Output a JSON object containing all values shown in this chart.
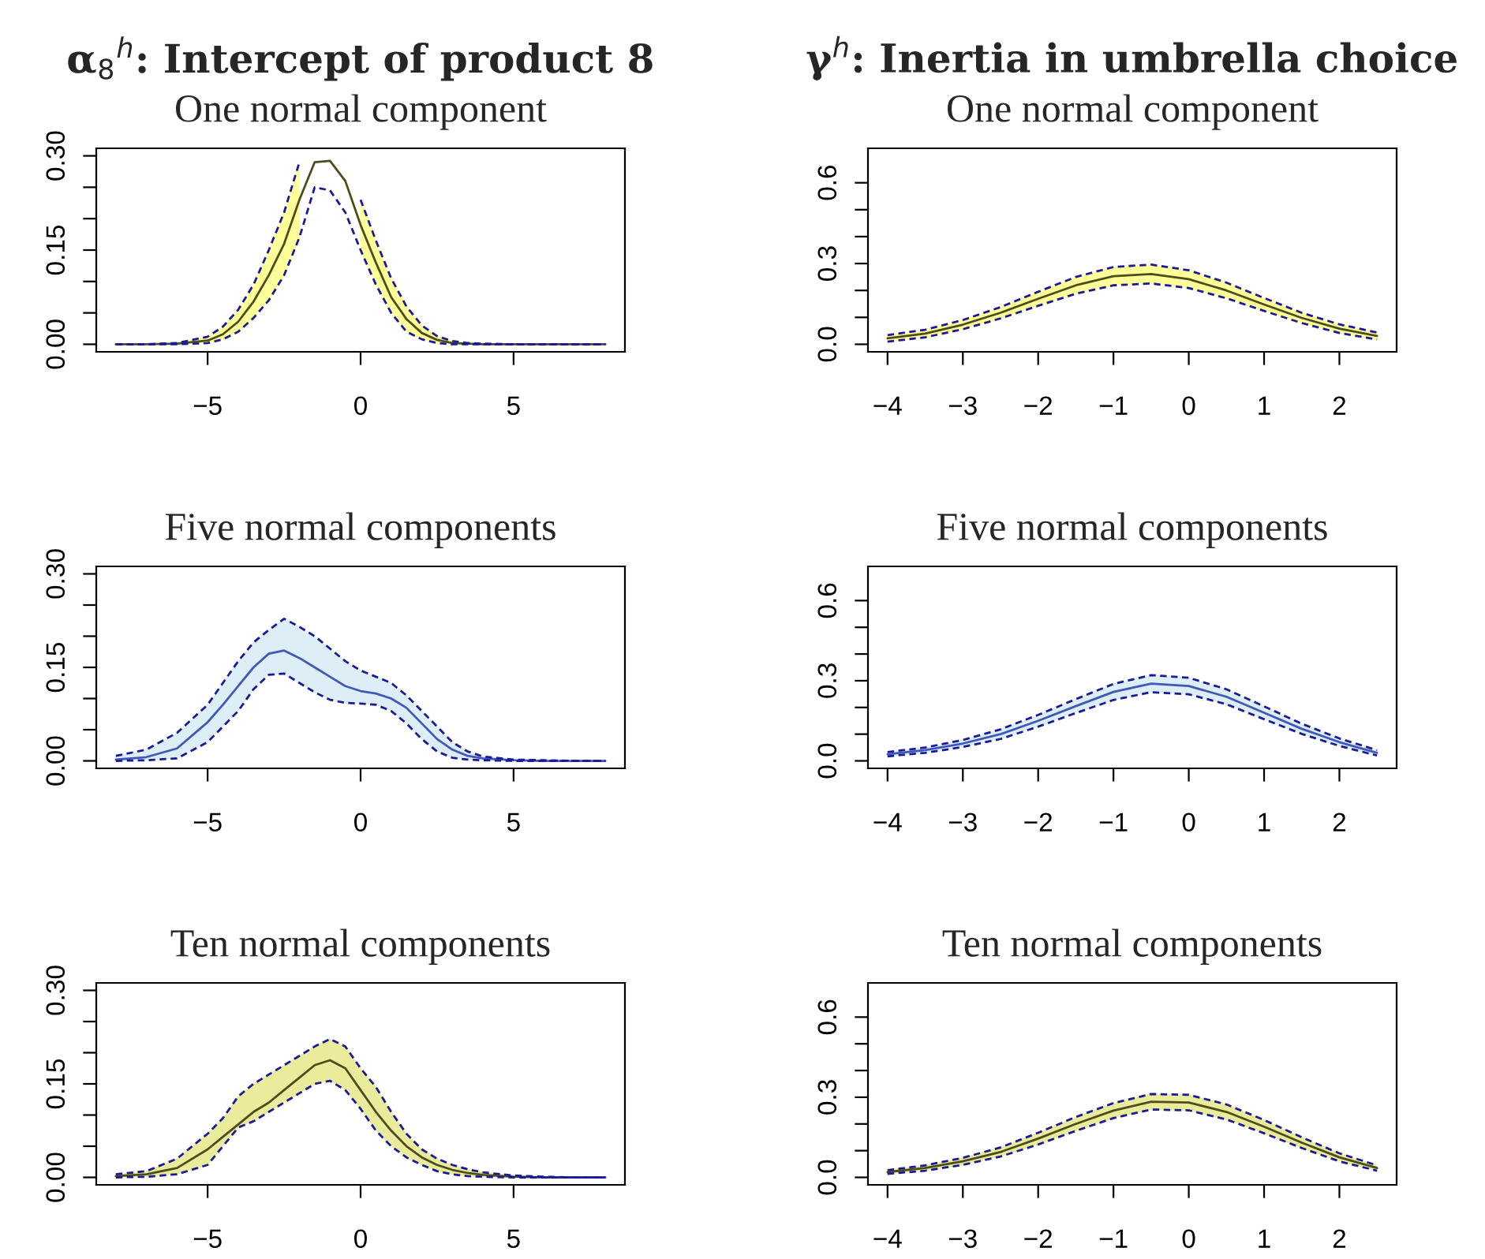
{
  "chart_data": [
    {
      "type": "line",
      "title": "α$_{8}$$^{h}$: Intercept of product 8",
      "subtitle": "One normal component",
      "x": [
        -8,
        -7,
        -6,
        -5,
        -4.5,
        -4,
        -3.5,
        -3,
        -2.5,
        -2,
        -1.5,
        -1,
        -0.5,
        0,
        0.5,
        1,
        1.5,
        2,
        2.5,
        3,
        3.5,
        4,
        5,
        6,
        7,
        8
      ],
      "series": [
        {
          "color": "#4d4d1a",
          "colors": [
            "#ffff99",
            "#ffff99",
            "#ffff99",
            "#ffff99",
            "#ffff99",
            "#ffff99",
            "#ffff99",
            "#ffff99",
            "#ffff99",
            "#ffff99",
            "#ffff99",
            "#ffff99",
            "#ffff99",
            "#ffff99",
            "#ffff99",
            "#ffff99",
            "#ffff99",
            "#ffff99",
            "#ffff99",
            "#ffff99",
            "#ffff99",
            "#ffff99",
            "#ffff99",
            "#ffff99",
            "#ffff99",
            "#ffff99"
          ],
          "values": [
            0,
            0,
            0.001,
            0.006,
            0.016,
            0.036,
            0.068,
            0.11,
            0.16,
            0.23,
            0.29,
            0.292,
            0.26,
            0.19,
            0.13,
            0.075,
            0.04,
            0.018,
            0.007,
            0.002,
            0.001,
            0,
            0,
            0,
            0,
            0
          ],
          "lower": [
            null,
            null,
            0,
            0.002,
            0.008,
            0.02,
            0.042,
            0.07,
            0.11,
            0.17,
            null,
            null,
            null,
            0.15,
            0.095,
            0.05,
            0.02,
            0.008,
            0.002,
            0,
            0,
            0,
            null,
            null,
            null,
            null
          ],
          "upper": [
            null,
            null,
            0.002,
            0.012,
            0.028,
            0.055,
            0.095,
            0.15,
            0.21,
            0.29,
            null,
            null,
            null,
            0.23,
            0.165,
            0.105,
            0.06,
            0.03,
            0.013,
            0.005,
            0.002,
            0.001,
            null,
            null,
            null,
            null
          ]
        },
        {
          "type": "line",
          "line_style": "dashed",
          "color": "#1a1a99",
          "values": [
            0,
            0,
            0,
            0.002,
            0.008,
            0.02,
            0.042,
            0.07,
            0.11,
            0.17,
            0.25,
            0.245,
            0.21,
            0.15,
            0.095,
            0.05,
            0.02,
            0.008,
            0.002,
            0,
            0,
            0,
            0,
            0,
            0,
            0
          ]
        },
        {
          "type": "line",
          "line_style": "dashed",
          "color": "#1a1a99",
          "values": [
            0,
            0,
            0.002,
            0.012,
            0.028,
            0.055,
            0.095,
            0.15,
            0.21,
            0.29,
            null,
            null,
            null,
            0.23,
            0.165,
            0.105,
            0.06,
            0.03,
            0.013,
            0.005,
            0.002,
            0.001,
            0,
            0,
            0,
            0
          ]
        }
      ],
      "xlim": [
        -8.64,
        8.64
      ],
      "xticks": [
        {
          "value": -5,
          "label": "−5"
        },
        0,
        5
      ],
      "ylim": [
        -0.012,
        0.312
      ],
      "yticks": [
        {
          "value": 0,
          "label": "0.00"
        },
        {
          "value": 0.05,
          "label": null
        },
        {
          "value": 0.1,
          "label": null
        },
        0.15,
        {
          "value": 0.2,
          "label": null
        },
        {
          "value": 0.25,
          "label": null
        },
        {
          "value": 0.3,
          "label": "0.30"
        }
      ],
      "grid": false,
      "legend": false,
      "line_style": "solid"
    },
    {
      "type": "line",
      "title": "γ$^{h}$: Inertia in umbrella choice",
      "subtitle": "One normal component",
      "x": [
        -4,
        -3.5,
        -3,
        -2.5,
        -2,
        -1.5,
        -1,
        -0.5,
        0,
        0.5,
        1,
        1.5,
        2,
        2.5
      ],
      "series": [
        {
          "color": "#4d4d1a",
          "colors": [
            "#ffff99",
            "#ffff99",
            "#ffff99",
            "#ffff99",
            "#ffff99",
            "#ffff99",
            "#ffff99",
            "#ffff99",
            "#ffff99",
            "#ffff99",
            "#ffff99",
            "#ffff99",
            "#ffff99",
            "#ffff99"
          ],
          "values": [
            0.022,
            0.04,
            0.073,
            0.117,
            0.169,
            0.219,
            0.253,
            0.261,
            0.242,
            0.2,
            0.148,
            0.098,
            0.058,
            0.031
          ],
          "lower": [
            0.01,
            0.026,
            0.056,
            0.096,
            0.143,
            0.188,
            0.219,
            0.226,
            0.209,
            0.171,
            0.124,
            0.079,
            0.042,
            0.018
          ],
          "upper": [
            0.034,
            0.054,
            0.09,
            0.138,
            0.195,
            0.25,
            0.287,
            0.296,
            0.275,
            0.229,
            0.172,
            0.117,
            0.074,
            0.044
          ]
        },
        {
          "type": "line",
          "line_style": "dashed",
          "color": "#1a1a99",
          "values": [
            0.01,
            0.026,
            0.056,
            0.096,
            0.143,
            0.188,
            0.219,
            0.226,
            0.209,
            0.171,
            0.124,
            0.079,
            0.042,
            0.018
          ]
        },
        {
          "type": "line",
          "line_style": "dashed",
          "color": "#1a1a99",
          "values": [
            0.034,
            0.054,
            0.09,
            0.138,
            0.195,
            0.25,
            0.287,
            0.296,
            0.275,
            0.229,
            0.172,
            0.117,
            0.074,
            0.044
          ]
        }
      ],
      "xlim": [
        -4.26,
        2.76
      ],
      "xticks": [
        {
          "value": -4,
          "label": "−4"
        },
        {
          "value": -3,
          "label": "−3"
        },
        {
          "value": -2,
          "label": "−2"
        },
        {
          "value": -1,
          "label": "−1"
        },
        0,
        1,
        2
      ],
      "ylim": [
        -0.028,
        0.728
      ],
      "yticks": [
        {
          "value": 0,
          "label": "0.0"
        },
        {
          "value": 0.1,
          "label": null
        },
        {
          "value": 0.2,
          "label": null
        },
        0.3,
        {
          "value": 0.4,
          "label": null
        },
        {
          "value": 0.5,
          "label": null
        },
        0.6
      ],
      "grid": false,
      "legend": false,
      "line_style": "solid"
    },
    {
      "type": "line",
      "subtitle": "Five normal components",
      "x": [
        -8,
        -7,
        -6,
        -5,
        -4.5,
        -4,
        -3.5,
        -3,
        -2.5,
        -2,
        -1.5,
        -1,
        -0.5,
        0,
        0.5,
        1,
        1.5,
        2,
        2.5,
        3,
        3.5,
        4,
        5,
        6,
        7,
        8
      ],
      "series": [
        {
          "color": "#4058b8",
          "colors": [
            "#ddeef6",
            "#ddeef6",
            "#ddeef6",
            "#ddeef6",
            "#ddeef6",
            "#ddeef6",
            "#ddeef6",
            "#ddeef6",
            "#ddeef6",
            "#ddeef6",
            "#ddeef6",
            "#ddeef6",
            "#ddeef6",
            "#ddeef6",
            "#ddeef6",
            "#ddeef6",
            "#ddeef6",
            "#ddeef6",
            "#ddeef6",
            "#ddeef6",
            "#ddeef6",
            "#ddeef6",
            "#ddeef6",
            "#ddeef6",
            "#ddeef6",
            "#ddeef6"
          ],
          "values": [
            0.002,
            0.006,
            0.02,
            0.062,
            0.09,
            0.12,
            0.15,
            0.172,
            0.177,
            0.165,
            0.15,
            0.135,
            0.12,
            0.112,
            0.108,
            0.1,
            0.085,
            0.06,
            0.035,
            0.018,
            0.008,
            0.004,
            0.001,
            0,
            0,
            0
          ],
          "lower": [
            0,
            0.001,
            0.004,
            0.03,
            0.055,
            0.08,
            0.115,
            0.138,
            0.14,
            0.125,
            0.11,
            0.098,
            0.093,
            0.092,
            0.09,
            0.08,
            0.06,
            0.035,
            0.015,
            0.005,
            0.002,
            0.001,
            0,
            0,
            null,
            null
          ],
          "upper": [
            0.008,
            0.018,
            0.045,
            0.09,
            0.125,
            0.16,
            0.19,
            0.21,
            0.228,
            0.215,
            0.2,
            0.18,
            0.16,
            0.145,
            0.135,
            0.125,
            0.105,
            0.08,
            0.055,
            0.03,
            0.015,
            0.007,
            0.002,
            0.001,
            null,
            null
          ]
        },
        {
          "type": "line",
          "line_style": "dashed",
          "color": "#1a1a99",
          "values": [
            0,
            0.001,
            0.004,
            0.03,
            0.055,
            0.08,
            0.115,
            0.138,
            0.14,
            0.125,
            0.11,
            0.098,
            0.093,
            0.092,
            0.09,
            0.08,
            0.06,
            0.035,
            0.015,
            0.005,
            0.002,
            0.001,
            0,
            0,
            0,
            0
          ]
        },
        {
          "type": "line",
          "line_style": "dashed",
          "color": "#1a1a99",
          "values": [
            0.008,
            0.018,
            0.045,
            0.09,
            0.125,
            0.16,
            0.19,
            0.21,
            0.228,
            0.215,
            0.2,
            0.18,
            0.16,
            0.145,
            0.135,
            0.125,
            0.105,
            0.08,
            0.055,
            0.03,
            0.015,
            0.007,
            0.002,
            0.001,
            0,
            0
          ]
        }
      ],
      "xlim": [
        -8.64,
        8.64
      ],
      "xticks": [
        {
          "value": -5,
          "label": "−5"
        },
        0,
        5
      ],
      "ylim": [
        -0.012,
        0.312
      ],
      "yticks": [
        {
          "value": 0,
          "label": "0.00"
        },
        {
          "value": 0.05,
          "label": null
        },
        {
          "value": 0.1,
          "label": null
        },
        0.15,
        {
          "value": 0.2,
          "label": null
        },
        {
          "value": 0.25,
          "label": null
        },
        {
          "value": 0.3,
          "label": "0.30"
        }
      ],
      "grid": false,
      "legend": false,
      "line_style": "solid"
    },
    {
      "type": "line",
      "subtitle": "Five normal components",
      "x": [
        -4,
        -3.5,
        -3,
        -2.5,
        -2,
        -1.5,
        -1,
        -0.5,
        0,
        0.5,
        1,
        1.5,
        2,
        2.5
      ],
      "series": [
        {
          "color": "#4058b8",
          "colors": [
            "#ddeef6",
            "#ddeef6",
            "#ddeef6",
            "#ddeef6",
            "#ddeef6",
            "#ddeef6",
            "#ddeef6",
            "#ddeef6",
            "#ddeef6",
            "#ddeef6",
            "#ddeef6",
            "#ddeef6",
            "#ddeef6",
            "#ddeef6"
          ],
          "values": [
            0.025,
            0.04,
            0.065,
            0.1,
            0.15,
            0.205,
            0.258,
            0.289,
            0.28,
            0.24,
            0.18,
            0.12,
            0.07,
            0.03
          ],
          "lower": [
            0.017,
            0.03,
            0.052,
            0.082,
            0.128,
            0.179,
            0.228,
            0.257,
            0.249,
            0.212,
            0.156,
            0.101,
            0.056,
            0.02
          ],
          "upper": [
            0.033,
            0.05,
            0.078,
            0.118,
            0.172,
            0.231,
            0.288,
            0.321,
            0.311,
            0.268,
            0.204,
            0.139,
            0.084,
            0.04
          ]
        },
        {
          "type": "line",
          "line_style": "dashed",
          "color": "#1a1a99",
          "values": [
            0.017,
            0.03,
            0.052,
            0.082,
            0.128,
            0.179,
            0.228,
            0.257,
            0.249,
            0.212,
            0.156,
            0.101,
            0.056,
            0.02
          ]
        },
        {
          "type": "line",
          "line_style": "dashed",
          "color": "#1a1a99",
          "values": [
            0.033,
            0.05,
            0.078,
            0.118,
            0.172,
            0.231,
            0.288,
            0.321,
            0.311,
            0.268,
            0.204,
            0.139,
            0.084,
            0.04
          ]
        }
      ],
      "xlim": [
        -4.26,
        2.76
      ],
      "xticks": [
        {
          "value": -4,
          "label": "−4"
        },
        {
          "value": -3,
          "label": "−3"
        },
        {
          "value": -2,
          "label": "−2"
        },
        {
          "value": -1,
          "label": "−1"
        },
        0,
        1,
        2
      ],
      "ylim": [
        -0.028,
        0.728
      ],
      "yticks": [
        {
          "value": 0,
          "label": "0.0"
        },
        {
          "value": 0.1,
          "label": null
        },
        {
          "value": 0.2,
          "label": null
        },
        0.3,
        {
          "value": 0.4,
          "label": null
        },
        {
          "value": 0.5,
          "label": null
        },
        0.6
      ],
      "grid": false,
      "legend": false,
      "line_style": "solid"
    },
    {
      "type": "line",
      "subtitle": "Ten normal components",
      "x": [
        -8,
        -7,
        -6,
        -5,
        -4.5,
        -4,
        -3.5,
        -3,
        -2.5,
        -2,
        -1.5,
        -1,
        -0.5,
        0,
        0.5,
        1,
        1.5,
        2,
        2.5,
        3,
        3.5,
        4,
        5,
        6,
        7,
        8
      ],
      "series": [
        {
          "color": "#4d4d1a",
          "colors": [
            "#ebeb9c",
            "#ebeb9c",
            "#ebeb9c",
            "#ebeb9c",
            "#ebeb9c",
            "#ebeb9c",
            "#ebeb9c",
            "#ebeb9c",
            "#ebeb9c",
            "#ebeb9c",
            "#ebeb9c",
            "#ebeb9c",
            "#ebeb9c",
            "#ebeb9c",
            "#ebeb9c",
            "#ebeb9c",
            "#ebeb9c",
            "#ebeb9c",
            "#ebeb9c",
            "#ebeb9c",
            "#ebeb9c",
            "#ebeb9c",
            "#ebeb9c",
            "#ebeb9c",
            "#ebeb9c",
            "#ebeb9c"
          ],
          "values": [
            0.002,
            0.005,
            0.015,
            0.045,
            0.065,
            0.085,
            0.105,
            0.12,
            0.14,
            0.16,
            0.18,
            0.188,
            0.175,
            0.14,
            0.105,
            0.075,
            0.05,
            0.032,
            0.02,
            0.012,
            0.007,
            0.004,
            0.001,
            0,
            0,
            0
          ],
          "lower": [
            0,
            0.001,
            0.005,
            0.02,
            0.05,
            0.08,
            0.09,
            0.105,
            0.12,
            0.135,
            0.15,
            0.155,
            0.14,
            0.11,
            0.075,
            0.05,
            0.032,
            0.02,
            0.01,
            0.005,
            0.002,
            0.001,
            0,
            0,
            null,
            null
          ],
          "upper": [
            0.005,
            0.01,
            0.03,
            0.07,
            0.095,
            0.13,
            0.15,
            0.165,
            0.18,
            0.195,
            0.21,
            0.222,
            0.21,
            0.175,
            0.145,
            0.105,
            0.07,
            0.045,
            0.03,
            0.02,
            0.013,
            0.008,
            0.003,
            0.001,
            null,
            null
          ]
        },
        {
          "type": "line",
          "line_style": "dashed",
          "color": "#1a1a99",
          "values": [
            0,
            0.001,
            0.005,
            0.02,
            0.05,
            0.08,
            0.09,
            0.105,
            0.12,
            0.135,
            0.15,
            0.155,
            0.14,
            0.11,
            0.075,
            0.05,
            0.032,
            0.02,
            0.01,
            0.005,
            0.002,
            0.001,
            0,
            0,
            0,
            0
          ]
        },
        {
          "type": "line",
          "line_style": "dashed",
          "color": "#1a1a99",
          "values": [
            0.005,
            0.01,
            0.03,
            0.07,
            0.095,
            0.13,
            0.15,
            0.165,
            0.18,
            0.195,
            0.21,
            0.222,
            0.21,
            0.175,
            0.145,
            0.105,
            0.07,
            0.045,
            0.03,
            0.02,
            0.013,
            0.008,
            0.003,
            0.001,
            0,
            0
          ]
        }
      ],
      "xlim": [
        -8.64,
        8.64
      ],
      "xticks": [
        {
          "value": -5,
          "label": "−5"
        },
        0,
        5
      ],
      "ylim": [
        -0.012,
        0.312
      ],
      "yticks": [
        {
          "value": 0,
          "label": "0.00"
        },
        {
          "value": 0.05,
          "label": null
        },
        {
          "value": 0.1,
          "label": null
        },
        0.15,
        {
          "value": 0.2,
          "label": null
        },
        {
          "value": 0.25,
          "label": null
        },
        {
          "value": 0.3,
          "label": "0.30"
        }
      ],
      "grid": false,
      "legend": false,
      "line_style": "solid"
    },
    {
      "type": "line",
      "subtitle": "Ten normal components",
      "x": [
        -4,
        -3.5,
        -3,
        -2.5,
        -2,
        -1.5,
        -1,
        -0.5,
        0,
        0.5,
        1,
        1.5,
        2,
        2.5
      ],
      "series": [
        {
          "color": "#4d4d1a",
          "colors": [
            "#ebeb9c",
            "#ebeb9c",
            "#ebeb9c",
            "#ebeb9c",
            "#ebeb9c",
            "#ebeb9c",
            "#ebeb9c",
            "#ebeb9c",
            "#ebeb9c",
            "#ebeb9c",
            "#ebeb9c",
            "#ebeb9c",
            "#ebeb9c",
            "#ebeb9c"
          ],
          "values": [
            0.02,
            0.035,
            0.06,
            0.095,
            0.145,
            0.2,
            0.25,
            0.283,
            0.28,
            0.245,
            0.19,
            0.13,
            0.075,
            0.035
          ],
          "lower": [
            0.013,
            0.025,
            0.047,
            0.078,
            0.123,
            0.174,
            0.222,
            0.254,
            0.251,
            0.217,
            0.165,
            0.11,
            0.06,
            0.025
          ],
          "upper": [
            0.027,
            0.045,
            0.073,
            0.112,
            0.167,
            0.226,
            0.278,
            0.312,
            0.309,
            0.273,
            0.215,
            0.15,
            0.09,
            0.045
          ]
        },
        {
          "type": "line",
          "line_style": "dashed",
          "color": "#1a1a99",
          "values": [
            0.013,
            0.025,
            0.047,
            0.078,
            0.123,
            0.174,
            0.222,
            0.254,
            0.251,
            0.217,
            0.165,
            0.11,
            0.06,
            0.025
          ]
        },
        {
          "type": "line",
          "line_style": "dashed",
          "color": "#1a1a99",
          "values": [
            0.027,
            0.045,
            0.073,
            0.112,
            0.167,
            0.226,
            0.278,
            0.312,
            0.309,
            0.273,
            0.215,
            0.15,
            0.09,
            0.045
          ]
        }
      ],
      "xlim": [
        -4.26,
        2.76
      ],
      "xticks": [
        {
          "value": -4,
          "label": "−4"
        },
        {
          "value": -3,
          "label": "−3"
        },
        {
          "value": -2,
          "label": "−2"
        },
        {
          "value": -1,
          "label": "−1"
        },
        0,
        1,
        2
      ],
      "ylim": [
        -0.028,
        0.728
      ],
      "yticks": [
        {
          "value": 0,
          "label": "0.0"
        },
        {
          "value": 0.1,
          "label": null
        },
        {
          "value": 0.2,
          "label": null
        },
        0.3,
        {
          "value": 0.4,
          "label": null
        },
        {
          "value": 0.5,
          "label": null
        },
        0.6
      ],
      "grid": false,
      "legend": false,
      "line_style": "solid"
    }
  ]
}
